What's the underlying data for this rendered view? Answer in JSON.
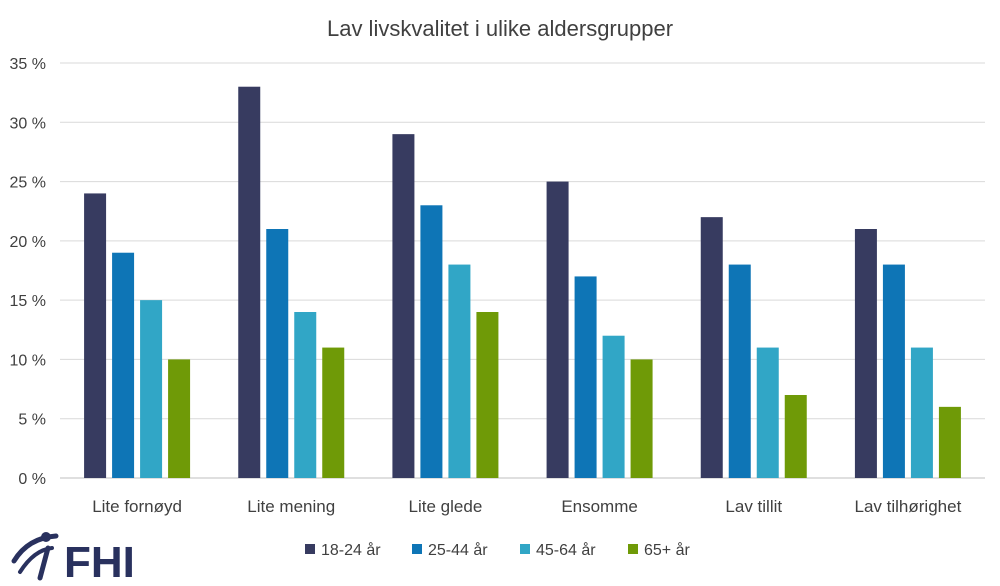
{
  "logo": {
    "text": "FHI",
    "color": "#29315e"
  },
  "chart_data": {
    "type": "bar",
    "title": "Lav livskvalitet i ulike aldersgrupper",
    "xlabel": "",
    "ylabel": "",
    "ylim": [
      0,
      35
    ],
    "yticks": [
      0,
      5,
      10,
      15,
      20,
      25,
      30,
      35
    ],
    "ytick_labels": [
      "0 %",
      "5 %",
      "10 %",
      "15 %",
      "20 %",
      "25 %",
      "30 %",
      "35 %"
    ],
    "grid": true,
    "legend_position": "bottom",
    "categories": [
      "Lite fornøyd",
      "Lite mening",
      "Lite glede",
      "Ensomme",
      "Lav tillit",
      "Lav tilhørighet"
    ],
    "series": [
      {
        "name": "18-24 år",
        "color": "#373b60",
        "values": [
          24,
          33,
          29,
          25,
          22,
          21
        ]
      },
      {
        "name": "25-44 år",
        "color": "#0e75b6",
        "values": [
          19,
          21,
          23,
          17,
          18,
          18
        ]
      },
      {
        "name": "45-64 år",
        "color": "#31a6c6",
        "values": [
          15,
          14,
          18,
          12,
          11,
          11
        ]
      },
      {
        "name": "65+ år",
        "color": "#6f9a07",
        "values": [
          10,
          11,
          14,
          10,
          7,
          6
        ]
      }
    ]
  }
}
